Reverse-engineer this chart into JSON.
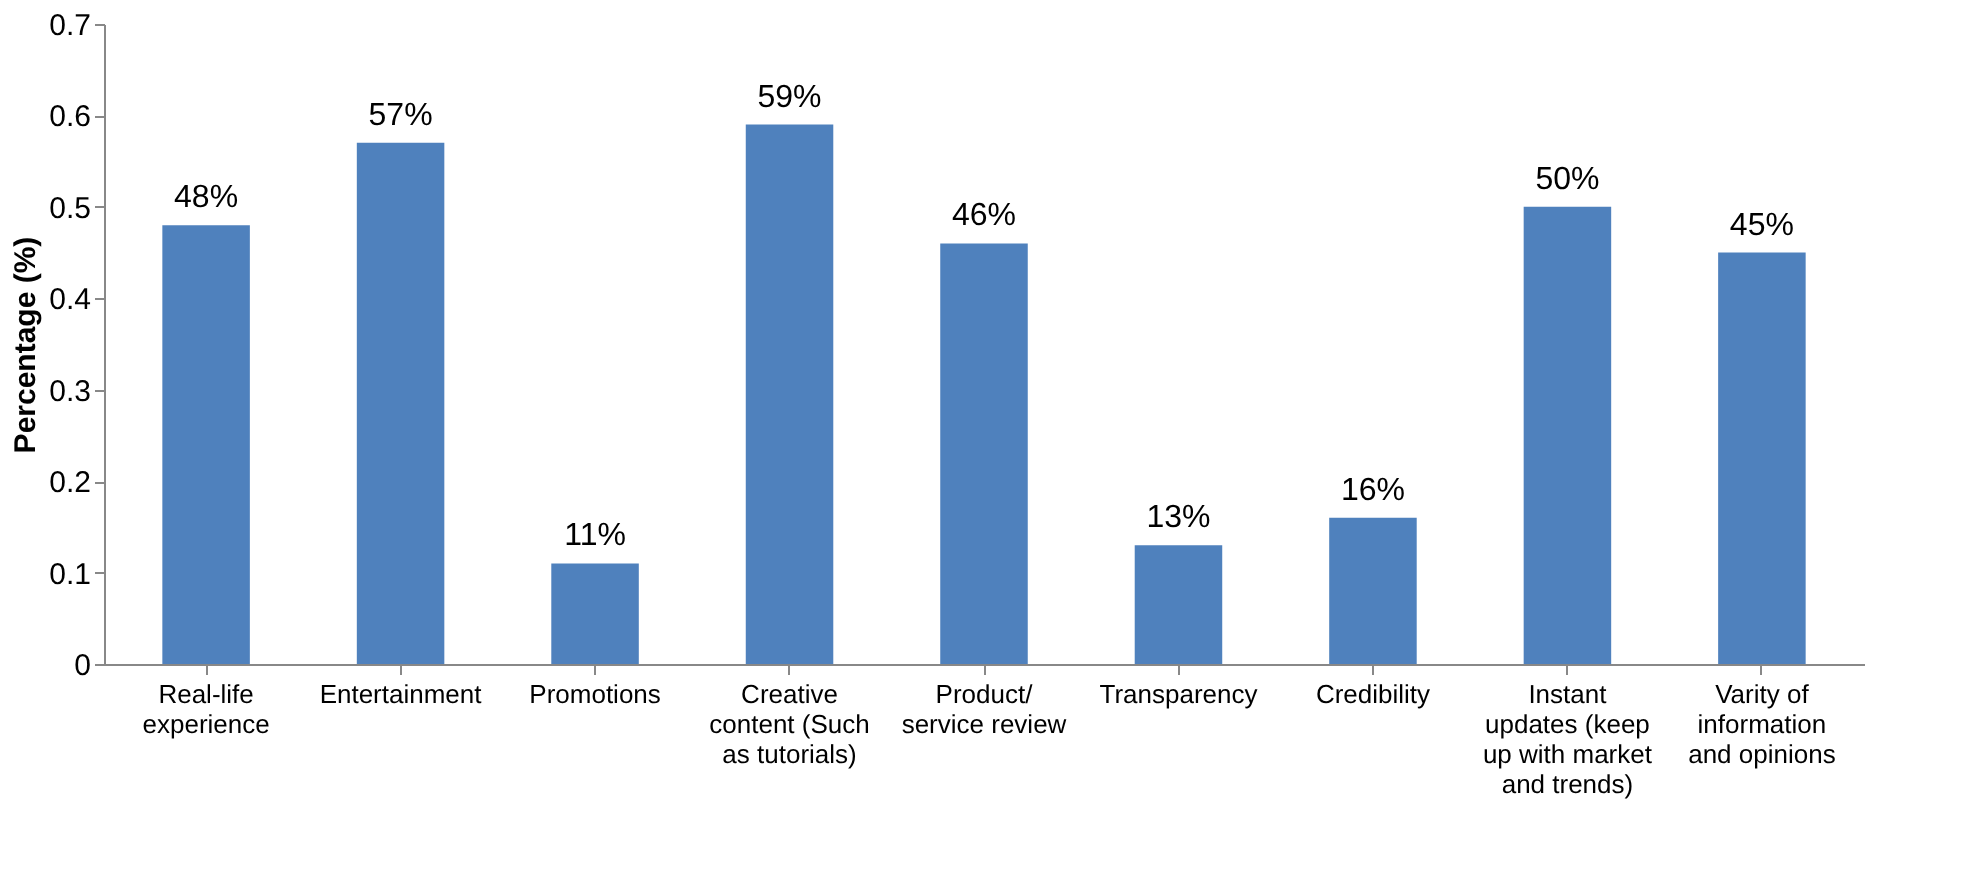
{
  "chart_data": {
    "type": "bar",
    "ylabel": "Percentage (%)",
    "categories": [
      "Real-life experience",
      "Entertainment",
      "Promotions",
      "Creative content (Such as tutorials)",
      "Product/ service review",
      "Transparency",
      "Credibility",
      "Instant updates (keep up with market and trends)",
      "Varity of information and opinions"
    ],
    "values": [
      0.48,
      0.57,
      0.11,
      0.59,
      0.46,
      0.13,
      0.16,
      0.5,
      0.45
    ],
    "value_labels": [
      "48%",
      "57%",
      "11%",
      "59%",
      "46%",
      "13%",
      "16%",
      "50%",
      "45%"
    ],
    "color": "#4f81bd",
    "ylim": [
      0,
      0.7
    ],
    "yticks": [
      0,
      0.1,
      0.2,
      0.3,
      0.4,
      0.5,
      0.6,
      0.7
    ],
    "grid": false
  }
}
